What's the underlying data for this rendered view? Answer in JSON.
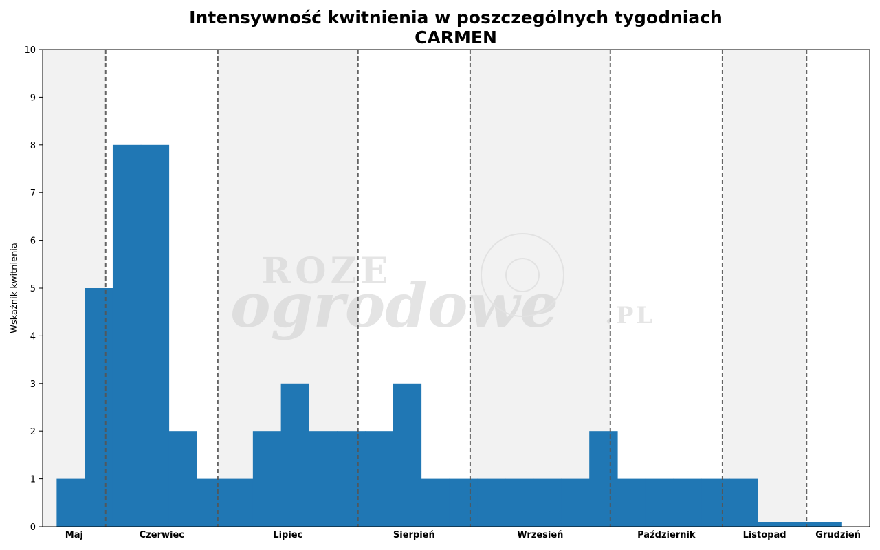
{
  "chart_data": {
    "type": "bar",
    "title": "Intensywność kwitnienia w poszczególnych tygodniach",
    "subtitle": "CARMEN",
    "xlabel": "",
    "ylabel": "Wskaźnik kwitnienia",
    "ylim": [
      0,
      10
    ],
    "yticks": [
      0,
      1,
      2,
      3,
      4,
      5,
      6,
      7,
      8,
      9,
      10
    ],
    "grid": false,
    "xlim_weeks": [
      0,
      29.5
    ],
    "series": [
      {
        "color": "#2077b4",
        "weeks": [
          1,
          2,
          3,
          4,
          5,
          6,
          7,
          8,
          9,
          10,
          11,
          12,
          13,
          14,
          15,
          16,
          17,
          18,
          19,
          20,
          21,
          22,
          23,
          24,
          25,
          26,
          27,
          28,
          29
        ],
        "values": [
          1,
          5,
          8,
          8,
          2,
          1,
          1,
          2,
          3,
          2,
          2,
          2,
          3,
          1,
          1,
          1,
          1,
          1,
          1,
          2,
          1,
          1,
          1,
          1,
          1,
          0.1,
          0.1,
          0.1,
          0
        ]
      }
    ],
    "months": [
      {
        "label": "Maj",
        "start": 0,
        "end": 2.25,
        "shaded": true
      },
      {
        "label": "Czerwiec",
        "start": 2.25,
        "end": 6.25,
        "shaded": false
      },
      {
        "label": "Lipiec",
        "start": 6.25,
        "end": 11.25,
        "shaded": true
      },
      {
        "label": "Sierpień",
        "start": 11.25,
        "end": 15.25,
        "shaded": false
      },
      {
        "label": "Wrzesień",
        "start": 15.25,
        "end": 20.25,
        "shaded": true
      },
      {
        "label": "Październik",
        "start": 20.25,
        "end": 24.25,
        "shaded": false
      },
      {
        "label": "Listopad",
        "start": 24.25,
        "end": 27.25,
        "shaded": true
      },
      {
        "label": "Grudzień",
        "start": 27.25,
        "end": 29.5,
        "shaded": false
      }
    ],
    "month_boundaries": [
      2.25,
      6.25,
      11.25,
      15.25,
      20.25,
      24.25,
      27.25
    ],
    "colors": {
      "shade": "#f2f2f2",
      "boundary_line": "#555555"
    }
  },
  "watermark": {
    "line1": "ROZE",
    "line2": "ogrodowe",
    "suffix": ".PL"
  }
}
